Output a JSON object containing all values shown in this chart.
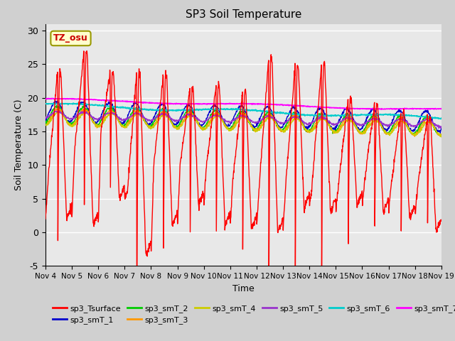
{
  "title": "SP3 Soil Temperature",
  "ylabel": "Soil Temperature (C)",
  "xlabel": "Time",
  "ylim": [
    -5,
    31
  ],
  "yticks": [
    -5,
    0,
    5,
    10,
    15,
    20,
    25,
    30
  ],
  "xtick_labels": [
    "Nov 4",
    "Nov 5",
    "Nov 6",
    "Nov 7",
    "Nov 8",
    "Nov 9",
    "Nov 10",
    "Nov 11",
    "Nov 12",
    "Nov 13",
    "Nov 14",
    "Nov 15",
    "Nov 16",
    "Nov 17",
    "Nov 18",
    "Nov 19"
  ],
  "series_colors": {
    "sp3_Tsurface": "#ff0000",
    "sp3_smT_1": "#0000cc",
    "sp3_smT_2": "#00cc00",
    "sp3_smT_3": "#ff9900",
    "sp3_smT_4": "#cccc00",
    "sp3_smT_5": "#9933cc",
    "sp3_smT_6": "#00cccc",
    "sp3_smT_7": "#ff00ff"
  },
  "annotation_text": "TZ_osu",
  "annotation_color": "#cc0000",
  "annotation_bg": "#ffffcc",
  "fig_facecolor": "#d0d0d0",
  "ax_facecolor": "#e8e8e8",
  "grid_color": "#ffffff",
  "n_points": 1440,
  "days": 15
}
